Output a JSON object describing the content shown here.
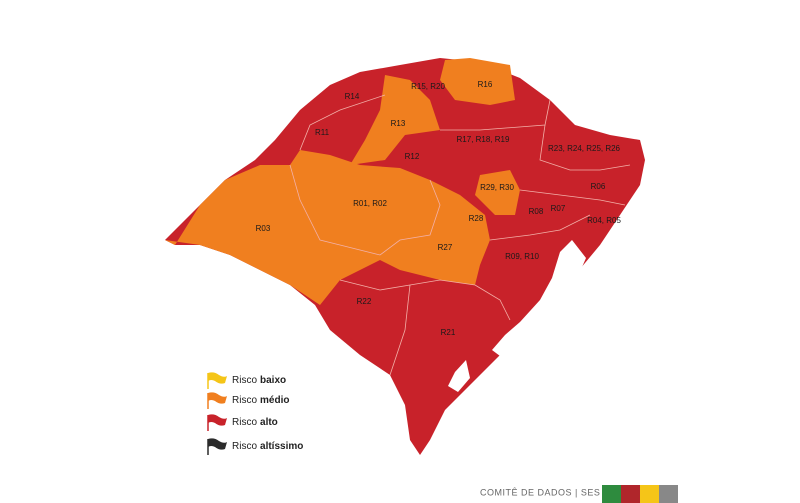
{
  "map": {
    "regions": [
      "R14",
      "R15, R20",
      "R16",
      "R11",
      "R13",
      "R17, R18, R19",
      "R12",
      "R23, R24, R25, R26",
      "R01, R02",
      "R29, R30",
      "R06",
      "R03",
      "R28",
      "R08",
      "R07",
      "R04, R05",
      "R27",
      "R09, R10",
      "R22",
      "R21"
    ]
  },
  "legend": [
    {
      "label": "Risco",
      "level": "baixo",
      "color": "#f5c518"
    },
    {
      "label": "Risco",
      "level": "médio",
      "color": "#f07f1f"
    },
    {
      "label": "Risco",
      "level": "alto",
      "color": "#c8222a"
    },
    {
      "label": "Risco",
      "level": "altíssimo",
      "color": "#2b2b2b"
    }
  ],
  "footer": "COMITÊ DE DADOS | SES"
}
